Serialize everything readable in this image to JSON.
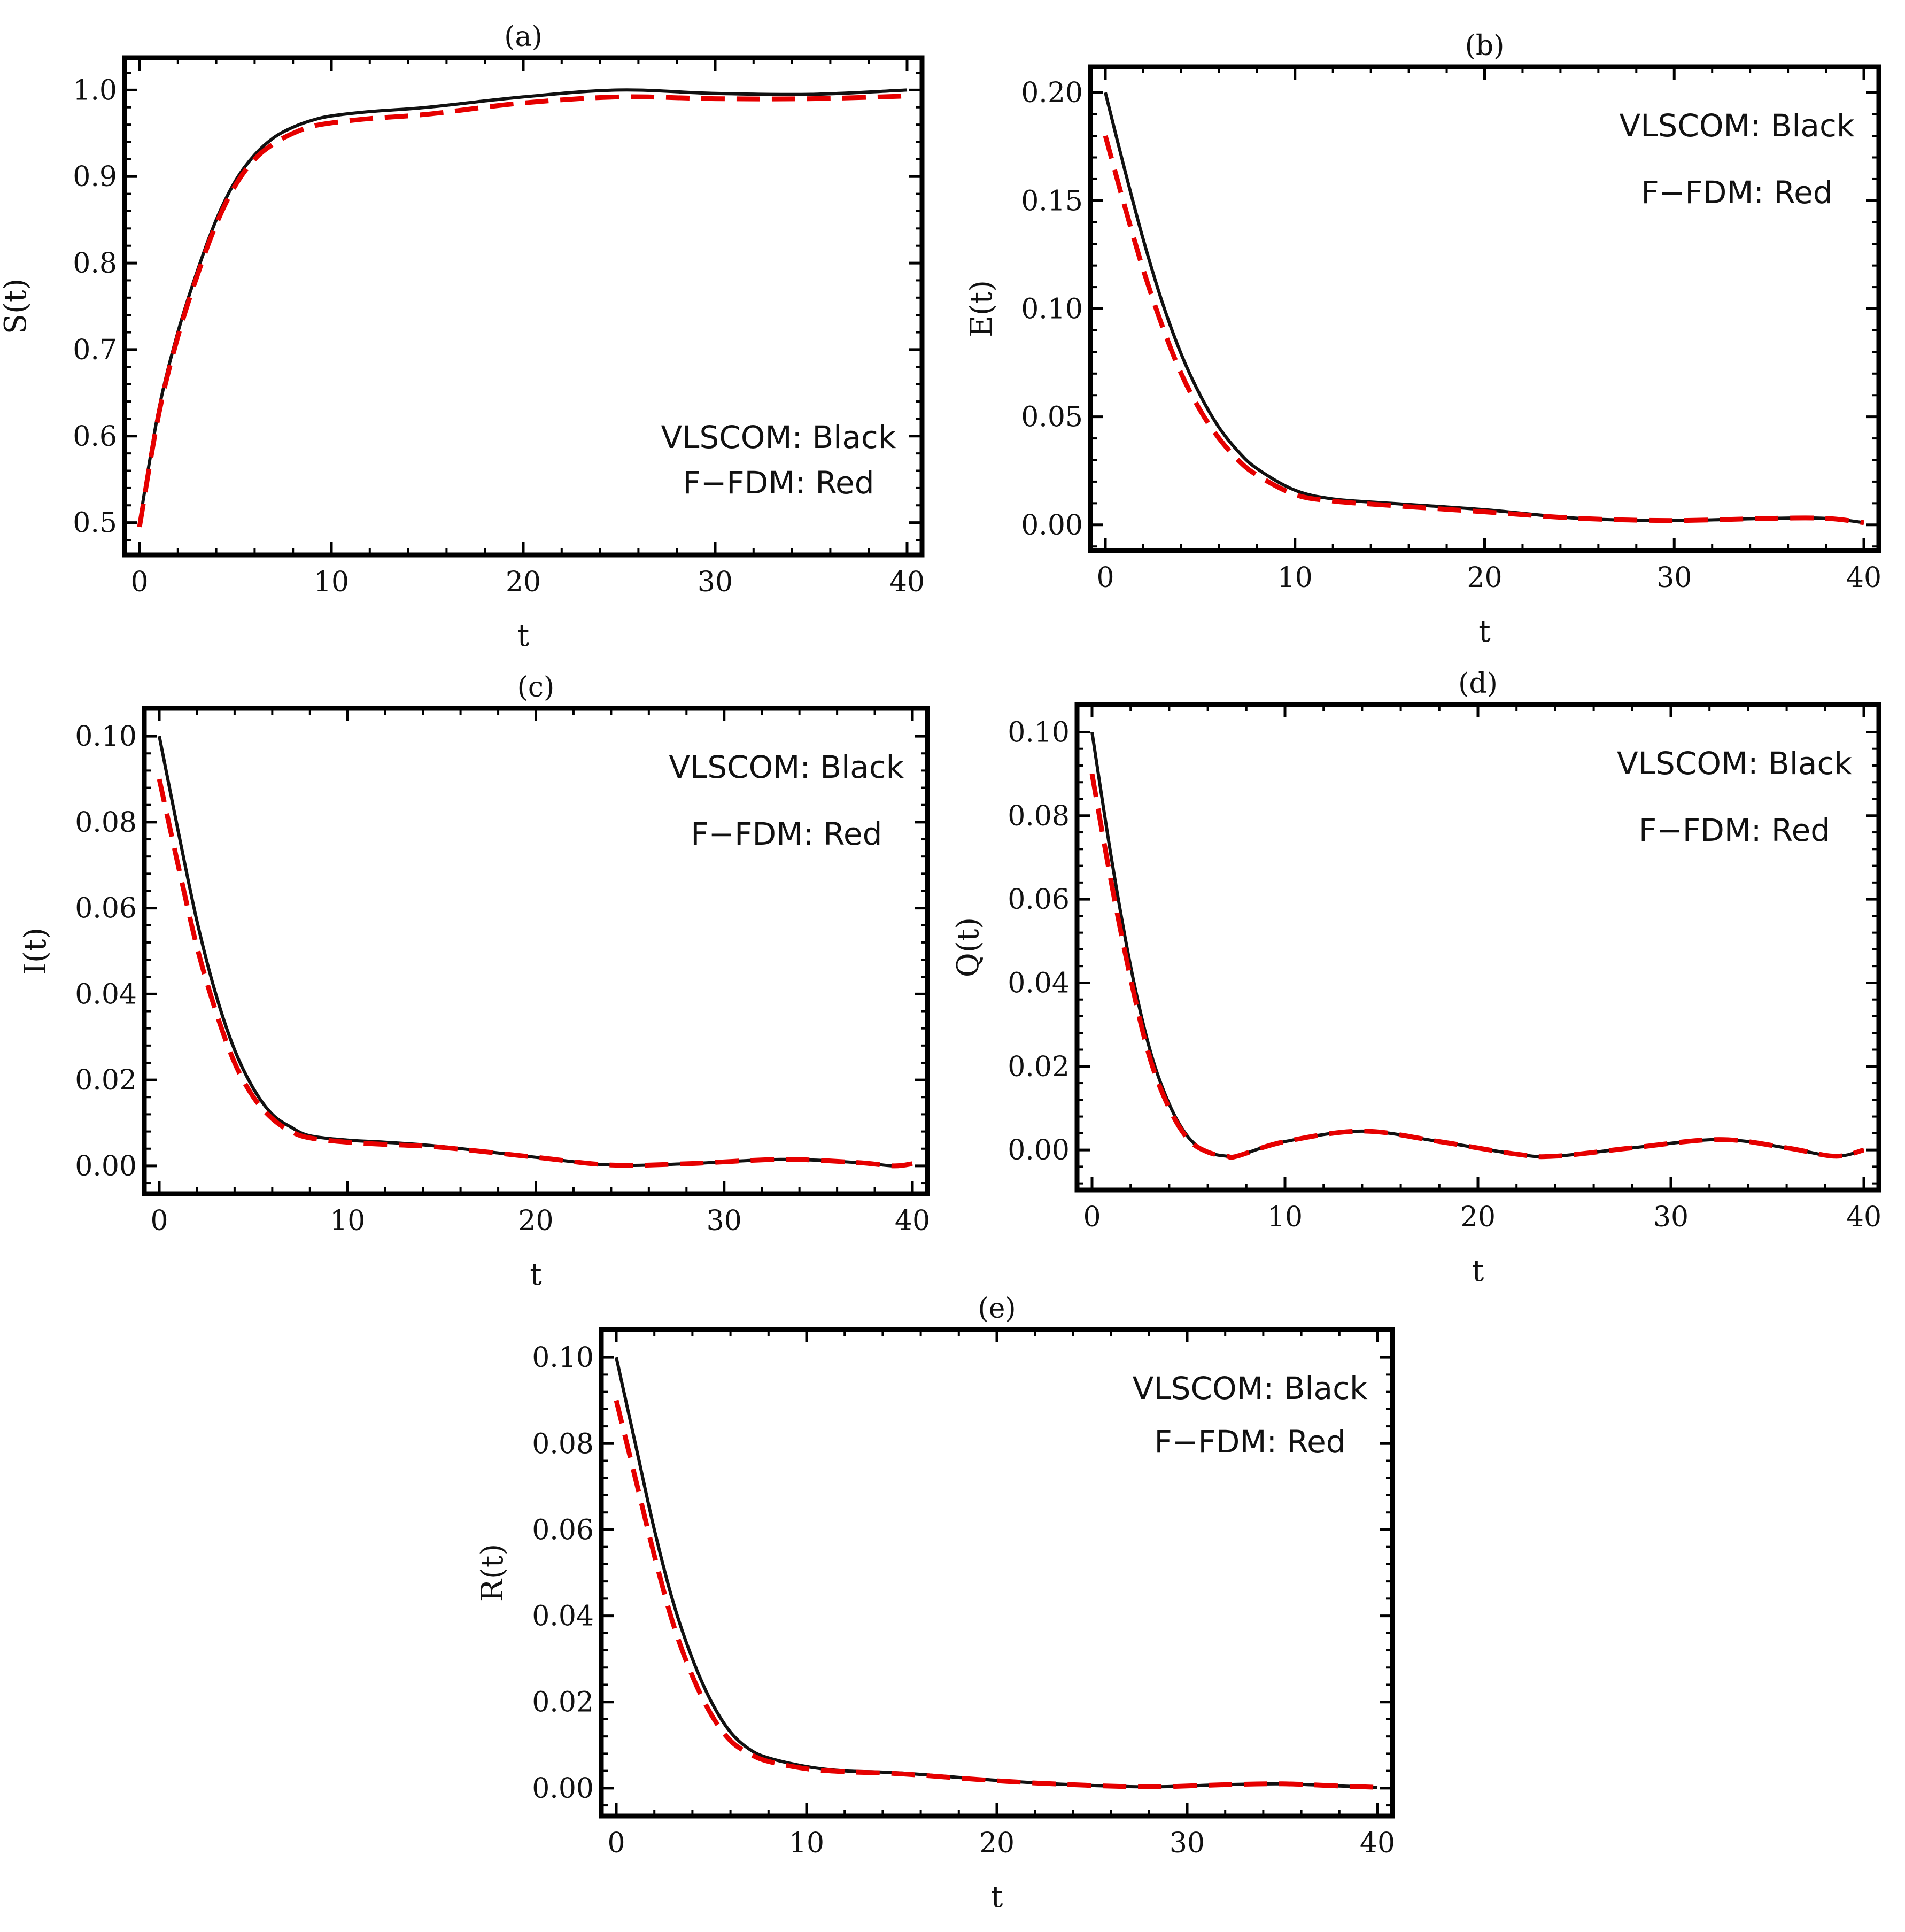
{
  "colors": {
    "series_black": "#111111",
    "series_red": "#e60000",
    "frame": "#000000"
  },
  "chart_data": [
    {
      "id": "a",
      "type": "line",
      "title": "(a)",
      "xlabel": "t",
      "ylabel": "S(t)",
      "xlim": [
        0,
        40
      ],
      "ylim": [
        0.48,
        1.02
      ],
      "xticks": [
        0,
        10,
        20,
        30,
        40
      ],
      "xtick_labels": [
        "0",
        "10",
        "20",
        "30",
        "40"
      ],
      "yticks": [
        0.5,
        0.6,
        0.7,
        0.8,
        0.9,
        1.0
      ],
      "ytick_labels": [
        "0.5",
        "0.6",
        "0.7",
        "0.8",
        "0.9",
        "1.0"
      ],
      "legend": [
        "VLSCOM: Black",
        "F−FDM: Red"
      ],
      "legend_position": "bottom-right",
      "series": [
        {
          "name": "VLSCOM",
          "color": "black",
          "style": "solid",
          "x": [
            0,
            1,
            2,
            3,
            4,
            5,
            6,
            7,
            8,
            9,
            10,
            12,
            15,
            20,
            25,
            30,
            35,
            40
          ],
          "y": [
            0.5,
            0.63,
            0.72,
            0.79,
            0.85,
            0.895,
            0.925,
            0.945,
            0.957,
            0.965,
            0.97,
            0.975,
            0.98,
            0.992,
            1.0,
            0.996,
            0.995,
            1.0
          ]
        },
        {
          "name": "F-FDM",
          "color": "red",
          "style": "dashed",
          "x": [
            0,
            1,
            2,
            3,
            4,
            5,
            6,
            7,
            8,
            9,
            10,
            12,
            15,
            20,
            25,
            30,
            35,
            40
          ],
          "y": [
            0.495,
            0.625,
            0.715,
            0.785,
            0.845,
            0.89,
            0.92,
            0.938,
            0.95,
            0.958,
            0.962,
            0.967,
            0.972,
            0.985,
            0.992,
            0.99,
            0.99,
            0.993
          ]
        }
      ]
    },
    {
      "id": "b",
      "type": "line",
      "title": "(b)",
      "xlabel": "t",
      "ylabel": "E(t)",
      "xlim": [
        0,
        40
      ],
      "ylim": [
        -0.005,
        0.205
      ],
      "xticks": [
        0,
        10,
        20,
        30,
        40
      ],
      "xtick_labels": [
        "0",
        "10",
        "20",
        "30",
        "40"
      ],
      "yticks": [
        0,
        0.05,
        0.1,
        0.15,
        0.2
      ],
      "ytick_labels": [
        "0.00",
        "0.05",
        "0.10",
        "0.15",
        "0.20"
      ],
      "legend": [
        "VLSCOM: Black",
        "F−FDM: Red"
      ],
      "legend_position": "top-right",
      "series": [
        {
          "name": "VLSCOM",
          "color": "black",
          "style": "solid",
          "x": [
            0,
            1,
            2,
            3,
            4,
            5,
            6,
            7,
            8,
            10,
            12,
            15,
            20,
            25,
            30,
            35,
            38,
            40
          ],
          "y": [
            0.2,
            0.165,
            0.132,
            0.103,
            0.079,
            0.06,
            0.045,
            0.034,
            0.026,
            0.016,
            0.012,
            0.01,
            0.007,
            0.003,
            0.002,
            0.003,
            0.003,
            0.001
          ]
        },
        {
          "name": "F-FDM",
          "color": "red",
          "style": "dashed",
          "x": [
            0,
            1,
            2,
            3,
            4,
            5,
            6,
            7,
            8,
            10,
            12,
            15,
            20,
            25,
            30,
            35,
            38,
            40
          ],
          "y": [
            0.18,
            0.148,
            0.118,
            0.092,
            0.07,
            0.053,
            0.04,
            0.03,
            0.023,
            0.014,
            0.011,
            0.009,
            0.006,
            0.003,
            0.002,
            0.003,
            0.003,
            0.001
          ]
        }
      ]
    },
    {
      "id": "c",
      "type": "line",
      "title": "(c)",
      "xlabel": "t",
      "ylabel": "I(t)",
      "xlim": [
        0,
        40
      ],
      "ylim": [
        -0.003,
        0.103
      ],
      "xticks": [
        0,
        10,
        20,
        30,
        40
      ],
      "xtick_labels": [
        "0",
        "10",
        "20",
        "30",
        "40"
      ],
      "yticks": [
        0,
        0.02,
        0.04,
        0.06,
        0.08,
        0.1
      ],
      "ytick_labels": [
        "0.00",
        "0.02",
        "0.04",
        "0.06",
        "0.08",
        "0.10"
      ],
      "legend": [
        "VLSCOM: Black",
        "F−FDM: Red"
      ],
      "legend_position": "top-right",
      "series": [
        {
          "name": "VLSCOM",
          "color": "black",
          "style": "solid",
          "x": [
            0,
            1,
            2,
            3,
            4,
            5,
            6,
            7,
            8,
            10,
            12,
            15,
            20,
            24,
            28,
            33,
            37,
            39,
            40
          ],
          "y": [
            0.1,
            0.078,
            0.057,
            0.04,
            0.027,
            0.018,
            0.012,
            0.009,
            0.007,
            0.006,
            0.0055,
            0.0045,
            0.002,
            0.0002,
            0.0005,
            0.0015,
            0.0008,
            0.0,
            0.0005
          ]
        },
        {
          "name": "F-FDM",
          "color": "red",
          "style": "dashed",
          "x": [
            0,
            1,
            2,
            3,
            4,
            5,
            6,
            7,
            8,
            10,
            12,
            15,
            20,
            24,
            28,
            33,
            37,
            39,
            40
          ],
          "y": [
            0.09,
            0.07,
            0.051,
            0.036,
            0.024,
            0.016,
            0.011,
            0.008,
            0.0065,
            0.0055,
            0.005,
            0.0043,
            0.002,
            0.0002,
            0.0005,
            0.0015,
            0.0008,
            0.0,
            0.0005
          ]
        }
      ]
    },
    {
      "id": "d",
      "type": "line",
      "title": "(d)",
      "xlabel": "t",
      "ylabel": "Q(t)",
      "xlim": [
        0,
        40
      ],
      "ylim": [
        -0.006,
        0.103
      ],
      "xticks": [
        0,
        10,
        20,
        30,
        40
      ],
      "xtick_labels": [
        "0",
        "10",
        "20",
        "30",
        "40"
      ],
      "yticks": [
        0,
        0.02,
        0.04,
        0.06,
        0.08,
        0.1
      ],
      "ytick_labels": [
        "0.00",
        "0.02",
        "0.04",
        "0.06",
        "0.08",
        "0.10"
      ],
      "legend": [
        "VLSCOM: Black",
        "F−FDM: Red"
      ],
      "legend_position": "top-right",
      "series": [
        {
          "name": "VLSCOM",
          "color": "black",
          "style": "solid",
          "x": [
            0,
            1,
            2,
            3,
            4,
            5,
            6,
            7,
            7.5,
            10,
            14,
            18,
            22,
            24,
            28,
            32.5,
            36,
            38.5,
            40
          ],
          "y": [
            0.1,
            0.07,
            0.044,
            0.024,
            0.011,
            0.003,
            -0.0005,
            -0.0015,
            -0.0015,
            0.002,
            0.0045,
            0.002,
            -0.001,
            -0.0015,
            0.0005,
            0.0025,
            0.0005,
            -0.0015,
            0.0
          ]
        },
        {
          "name": "F-FDM",
          "color": "red",
          "style": "dashed",
          "x": [
            0,
            1,
            2,
            3,
            4,
            5,
            6,
            7,
            7.5,
            10,
            14,
            18,
            22,
            24,
            28,
            32.5,
            36,
            38.5,
            40
          ],
          "y": [
            0.09,
            0.064,
            0.041,
            0.022,
            0.01,
            0.0025,
            -0.0005,
            -0.0015,
            -0.0015,
            0.002,
            0.0045,
            0.002,
            -0.001,
            -0.0015,
            0.0005,
            0.0025,
            0.0005,
            -0.0015,
            0.0
          ]
        }
      ]
    },
    {
      "id": "e",
      "type": "line",
      "title": "(e)",
      "xlabel": "t",
      "ylabel": "R(t)",
      "xlim": [
        0,
        40
      ],
      "ylim": [
        -0.003,
        0.103
      ],
      "xticks": [
        0,
        10,
        20,
        30,
        40
      ],
      "xtick_labels": [
        "0",
        "10",
        "20",
        "30",
        "40"
      ],
      "yticks": [
        0,
        0.02,
        0.04,
        0.06,
        0.08,
        0.1
      ],
      "ytick_labels": [
        "0.00",
        "0.02",
        "0.04",
        "0.06",
        "0.08",
        "0.10"
      ],
      "legend": [
        "VLSCOM: Black",
        "F−FDM: Red"
      ],
      "legend_position": "top-right",
      "series": [
        {
          "name": "VLSCOM",
          "color": "black",
          "style": "solid",
          "x": [
            0,
            1,
            2,
            3,
            4,
            5,
            6,
            7,
            8,
            10,
            12,
            15,
            20,
            24,
            28,
            32,
            35,
            38,
            40
          ],
          "y": [
            0.1,
            0.08,
            0.06,
            0.043,
            0.03,
            0.02,
            0.013,
            0.009,
            0.007,
            0.005,
            0.004,
            0.0035,
            0.0018,
            0.0008,
            0.0003,
            0.0008,
            0.001,
            0.0005,
            0.0002
          ]
        },
        {
          "name": "F-FDM",
          "color": "red",
          "style": "dashed",
          "x": [
            0,
            1,
            2,
            3,
            4,
            5,
            6,
            7,
            8,
            10,
            12,
            15,
            20,
            24,
            28,
            32,
            35,
            38,
            40
          ],
          "y": [
            0.09,
            0.072,
            0.054,
            0.038,
            0.026,
            0.017,
            0.011,
            0.008,
            0.0062,
            0.0045,
            0.0038,
            0.0033,
            0.0017,
            0.0008,
            0.0003,
            0.0008,
            0.001,
            0.0005,
            0.0002
          ]
        }
      ]
    }
  ]
}
